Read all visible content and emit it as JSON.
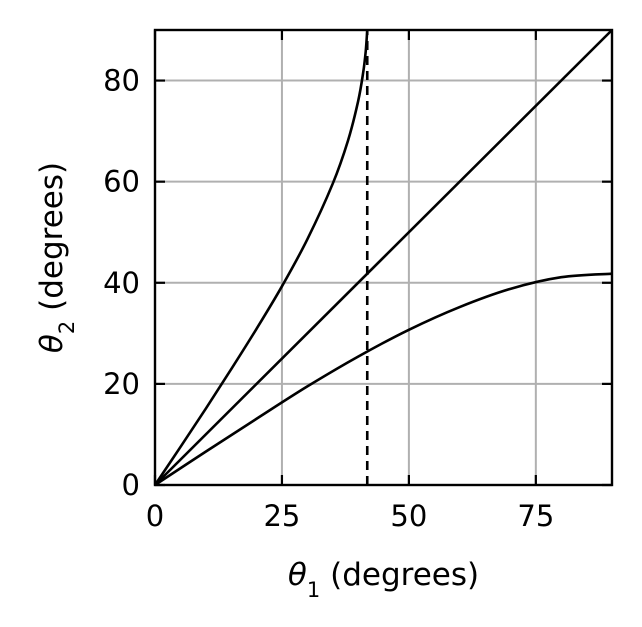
{
  "chart_data": {
    "type": "line",
    "title": "",
    "xlabel": {
      "symbol": "θ",
      "subscript": "1",
      "text": " (degrees)"
    },
    "ylabel": {
      "symbol": "θ",
      "subscript": "2",
      "text": " (degrees)"
    },
    "xlim": [
      0,
      90
    ],
    "ylim": [
      0,
      90
    ],
    "xticks": [
      0,
      25,
      50,
      75
    ],
    "yticks": [
      0,
      20,
      40,
      60,
      80
    ],
    "xtick_labels": [
      "0",
      "25",
      "50",
      "75"
    ],
    "ytick_labels": [
      "0",
      "20",
      "40",
      "60",
      "80"
    ],
    "grid": true,
    "legend": "none",
    "line_color": "#000000",
    "grid_color": "#b0b0b0",
    "series": [
      {
        "style": "solid",
        "x": [
          0,
          5,
          10,
          15,
          20,
          25,
          30,
          35,
          38,
          40,
          41,
          41.5,
          41.8
        ],
        "y": [
          0,
          7.5,
          15.1,
          22.9,
          30.9,
          39.3,
          48.6,
          59.6,
          68.1,
          75.9,
          81.6,
          85.8,
          90
        ]
      },
      {
        "style": "solid",
        "x": [
          0,
          90
        ],
        "y": [
          0,
          90
        ]
      },
      {
        "style": "solid",
        "x": [
          0,
          10,
          20,
          30,
          40,
          50,
          60,
          70,
          80,
          90
        ],
        "y": [
          0,
          6.6,
          13.1,
          19.5,
          25.4,
          30.7,
          35.2,
          38.8,
          41.1,
          41.8
        ]
      },
      {
        "style": "dashed",
        "x": [
          41.8,
          41.8
        ],
        "y": [
          0,
          90
        ]
      }
    ]
  }
}
